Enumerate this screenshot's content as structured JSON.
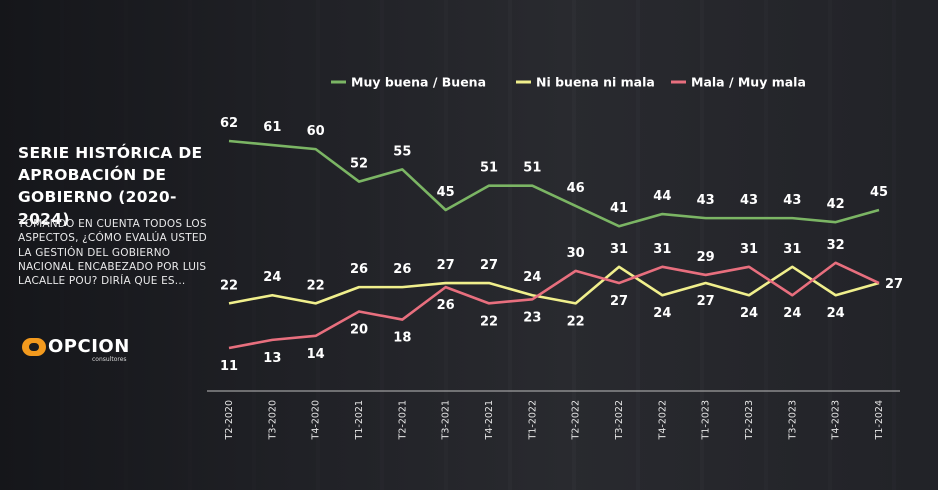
{
  "header": {
    "title": "SERIE HISTÓRICA DE APROBACIÓN DE GOBIERNO (2020- 2024)",
    "subtitle": "TOMANDO EN CUENTA TODOS LOS ASPECTOS, ¿CÓMO EVALÚA USTED LA GESTIÓN DEL GOBIERNO NACIONAL ENCABEZADO POR LUIS LACALLE POU? DIRÍA QUE ES..."
  },
  "logo": {
    "word": "OPCION",
    "sub": "consultores"
  },
  "chart_data": {
    "type": "line",
    "title": "SERIE HISTÓRICA DE APROBACIÓN DE GOBIERNO (2020- 2024)",
    "categories": [
      "T2-2020",
      "T3-2020",
      "T4-2020",
      "T1-2021",
      "T2-2021",
      "T3-2021",
      "T4-2021",
      "T1-2022",
      "T2-2022",
      "T3-2022",
      "T4-2022",
      "T1-2023",
      "T2-2023",
      "T3-2023",
      "T4-2023",
      "T1-2024"
    ],
    "series": [
      {
        "name": "Muy buena / Buena",
        "color": "#7bb564",
        "values": [
          62,
          61,
          60,
          52,
          55,
          45,
          51,
          51,
          46,
          41,
          44,
          43,
          43,
          43,
          42,
          45
        ]
      },
      {
        "name": "Ni buena ni mala",
        "color": "#f0ef8c",
        "values": [
          22,
          24,
          22,
          26,
          26,
          27,
          27,
          24,
          22,
          31,
          24,
          27,
          24,
          31,
          24,
          27
        ]
      },
      {
        "name": "Mala / Muy mala",
        "color": "#e86f7e",
        "values": [
          11,
          13,
          14,
          20,
          18,
          26,
          22,
          23,
          30,
          27,
          31,
          29,
          31,
          24,
          32,
          27
        ]
      }
    ],
    "legend_position": "top",
    "grid": false
  }
}
